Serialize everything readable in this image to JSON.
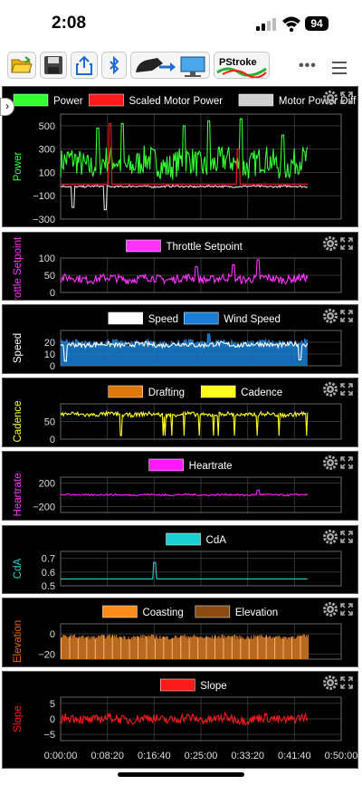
{
  "status": {
    "time": "2:08",
    "battery": "94"
  },
  "toolbar": {
    "buttons": [
      {
        "name": "open-folder-icon"
      },
      {
        "name": "save-icon"
      },
      {
        "name": "share-icon"
      },
      {
        "name": "bluetooth-icon"
      },
      {
        "name": "connect-trainer-icon"
      },
      {
        "name": "pstroke-logo",
        "label": "PStroke"
      }
    ],
    "more": "•••"
  },
  "charts": [
    {
      "id": "power",
      "ylabel": "Power",
      "ylabel_color": "#33ff33",
      "ticks": [
        "500",
        "300",
        "100",
        "−100",
        "−300"
      ],
      "yrange": [
        -300,
        600
      ],
      "legend": [
        {
          "name": "Power",
          "color": "#33ff33"
        },
        {
          "name": "Scaled Motor Power",
          "color": "#ff1a1a"
        },
        {
          "name": "Motor Power Diff",
          "color": "#d0d0d0"
        }
      ],
      "series": [
        {
          "color": "#33ff33",
          "base": 180,
          "amp": 120,
          "spikes": [
            [
              0.15,
              480
            ],
            [
              0.25,
              520
            ],
            [
              0.5,
              500
            ],
            [
              0.6,
              540
            ],
            [
              0.73,
              560
            ],
            [
              0.9,
              420
            ]
          ]
        },
        {
          "color": "#ff1a1a",
          "base": 0,
          "amp": 0,
          "spikes": [
            [
              0.2,
              520
            ],
            [
              0.72,
              300
            ]
          ]
        },
        {
          "color": "#e0e0e0",
          "base": -20,
          "amp": 8,
          "spikes": [
            [
              0.05,
              -200
            ],
            [
              0.18,
              -220
            ]
          ]
        }
      ]
    },
    {
      "id": "throttle",
      "ylabel": "Throttle Setpoint",
      "ylabel_color": "#ff33ff",
      "ticks": [
        "100",
        "50",
        "0"
      ],
      "yrange": [
        0,
        100
      ],
      "legend": [
        {
          "name": "Throttle Setpoint",
          "color": "#ff33ff"
        }
      ],
      "series": [
        {
          "color": "#ff33ff",
          "base": 40,
          "amp": 12,
          "spikes": [
            [
              0.55,
              75
            ],
            [
              0.7,
              80
            ],
            [
              0.8,
              95
            ]
          ]
        }
      ]
    },
    {
      "id": "speed",
      "ylabel": "Speed",
      "ylabel_color": "#ffffff",
      "ticks": [
        "20",
        "10",
        "0"
      ],
      "yrange": [
        0,
        30
      ],
      "legend": [
        {
          "name": "Speed",
          "color": "#ffffff"
        },
        {
          "name": "Wind Speed",
          "color": "#1a7fd4"
        }
      ],
      "series": [
        {
          "color": "#1a7fd4",
          "base": 19,
          "amp": 3,
          "fill": true,
          "spikes": [
            [
              0.6,
              27
            ]
          ]
        },
        {
          "color": "#ffffff",
          "base": 18,
          "amp": 2,
          "spikes": [
            [
              0.02,
              4
            ],
            [
              0.97,
              5
            ]
          ]
        }
      ]
    },
    {
      "id": "cadence",
      "ylabel": "Cadence",
      "ylabel_color": "#ffff33",
      "ticks": [
        "50",
        "0"
      ],
      "yrange": [
        0,
        100
      ],
      "legend": [
        {
          "name": "Drafting",
          "color": "#e07800"
        },
        {
          "name": "Cadence",
          "color": "#ffff1a"
        }
      ],
      "series": [
        {
          "color": "#ffff1a",
          "base": 70,
          "amp": 6,
          "dips": true,
          "spikes": []
        }
      ]
    },
    {
      "id": "heartrate",
      "ylabel": "Heartrate",
      "ylabel_color": "#ff33ff",
      "ticks": [
        "200",
        "−200"
      ],
      "yrange": [
        -300,
        300
      ],
      "legend": [
        {
          "name": "Heartrate",
          "color": "#ff1aff"
        }
      ],
      "series": [
        {
          "color": "#ff1aff",
          "base": 0,
          "amp": 15,
          "spikes": [
            [
              0.8,
              80
            ]
          ]
        }
      ]
    },
    {
      "id": "cda",
      "ylabel": "CdA",
      "ylabel_color": "#33cccc",
      "ticks": [
        "0.7",
        "0.6",
        "0.5"
      ],
      "yrange": [
        0.5,
        0.75
      ],
      "legend": [
        {
          "name": "CdA",
          "color": "#1ad0d0"
        }
      ],
      "series": [
        {
          "color": "#1ad0d0",
          "base": 0.55,
          "amp": 0,
          "spikes": [
            [
              0.38,
              0.67
            ]
          ]
        }
      ]
    },
    {
      "id": "elevation",
      "ylabel": "Elevation",
      "ylabel_color": "#e06a10",
      "ticks": [
        "0",
        "−20"
      ],
      "yrange": [
        -25,
        10
      ],
      "legend": [
        {
          "name": "Coasting",
          "color": "#ff8c1a"
        },
        {
          "name": "Elevation",
          "color": "#8a4a10"
        }
      ],
      "series": [
        {
          "color": "#b86a20",
          "base": -3,
          "amp": 2,
          "bars": true,
          "spikes": []
        }
      ]
    },
    {
      "id": "slope",
      "ylabel": "Slope",
      "ylabel_color": "#ff1a1a",
      "ticks": [
        "5",
        "0",
        "−5"
      ],
      "yrange": [
        -7,
        7
      ],
      "legend": [
        {
          "name": "Slope",
          "color": "#ff1a1a"
        }
      ],
      "series": [
        {
          "color": "#ff1a1a",
          "base": 0,
          "amp": 1.5,
          "spikes": []
        }
      ]
    }
  ],
  "xaxis": {
    "ticks": [
      "0:00:00",
      "0:08:20",
      "0:16:40",
      "0:25:00",
      "0:33:20",
      "0:41:40",
      "0:50:00"
    ],
    "range_sec": [
      0,
      3000
    ],
    "data_end_sec": 2640
  }
}
